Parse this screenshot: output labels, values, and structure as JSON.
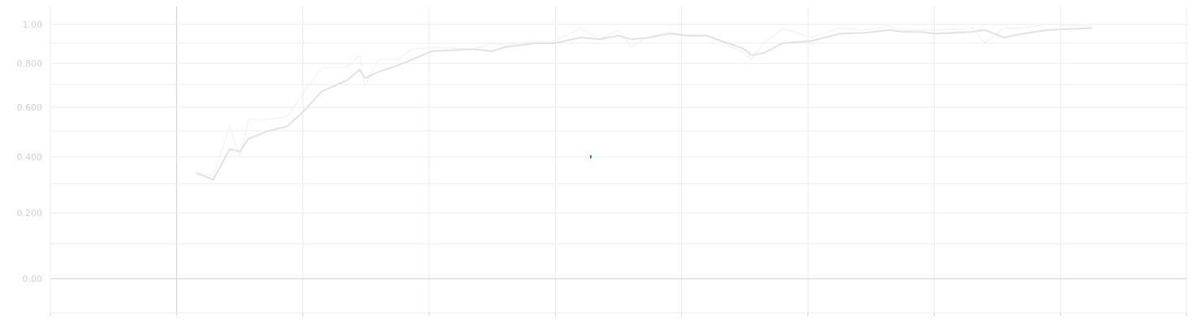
{
  "colors": {
    "background": "#ffffff",
    "grid": "#ececec",
    "axis": "#d6d6d6",
    "tick_text": "#cfcfcf",
    "smoothed_line": "#e2e2e2",
    "raw_line": "#f2f2f2",
    "marker": "#2b7bd6"
  },
  "chart_data": {
    "type": "line",
    "title": "",
    "xlabel": "",
    "ylabel": "",
    "xlim": [
      -1,
      8
    ],
    "ylim": [
      -0.15,
      1.08
    ],
    "y_scale": "symlog-like",
    "grid": true,
    "y_ticks": [
      {
        "value": 0.0,
        "label": "0.00"
      },
      {
        "value": 0.2,
        "label": "0.200"
      },
      {
        "value": 0.4,
        "label": "0.400"
      },
      {
        "value": 0.6,
        "label": "0.600"
      },
      {
        "value": 0.8,
        "label": "0.800"
      },
      {
        "value": 1.0,
        "label": "1.00"
      }
    ],
    "y_minor_ticks": [
      0.3,
      0.5,
      0.7,
      0.9
    ],
    "y_gridlines_extra": [
      0.1
    ],
    "x_gridlines": [
      -1,
      0,
      1,
      2,
      3,
      4,
      5,
      6,
      7,
      8
    ],
    "series": [
      {
        "role": "smoothed",
        "x": [
          0.15,
          0.29,
          0.42,
          0.5,
          0.57,
          0.73,
          0.88,
          1.0,
          1.15,
          1.35,
          1.45,
          1.49,
          1.6,
          1.75,
          1.87,
          2.02,
          2.35,
          2.5,
          2.6,
          2.85,
          3.0,
          3.2,
          3.35,
          3.5,
          3.6,
          3.75,
          3.9,
          4.05,
          4.2,
          4.5,
          4.55,
          4.65,
          4.8,
          5.02,
          5.25,
          5.45,
          5.65,
          5.75,
          5.9,
          6.0,
          6.3,
          6.4,
          6.55,
          6.7,
          6.9,
          7.25
        ],
        "y": [
          0.34,
          0.315,
          0.43,
          0.42,
          0.47,
          0.5,
          0.52,
          0.58,
          0.67,
          0.72,
          0.77,
          0.73,
          0.76,
          0.79,
          0.82,
          0.86,
          0.87,
          0.86,
          0.88,
          0.9,
          0.9,
          0.93,
          0.92,
          0.94,
          0.92,
          0.93,
          0.95,
          0.94,
          0.94,
          0.87,
          0.84,
          0.85,
          0.9,
          0.91,
          0.95,
          0.955,
          0.97,
          0.96,
          0.96,
          0.95,
          0.96,
          0.97,
          0.93,
          0.95,
          0.97,
          0.98
        ]
      },
      {
        "role": "raw",
        "x": [
          0.15,
          0.29,
          0.42,
          0.5,
          0.57,
          0.73,
          0.88,
          1.0,
          1.15,
          1.35,
          1.45,
          1.49,
          1.6,
          1.75,
          1.87,
          2.02,
          2.35,
          2.5,
          2.6,
          2.85,
          3.0,
          3.2,
          3.35,
          3.5,
          3.6,
          3.75,
          3.9,
          4.05,
          4.2,
          4.5,
          4.55,
          4.65,
          4.8,
          5.02,
          5.25,
          5.45,
          5.65,
          5.75,
          5.9,
          6.0,
          6.3,
          6.4,
          6.55,
          6.7,
          6.9,
          7.25
        ],
        "y": [
          0.34,
          0.33,
          0.52,
          0.4,
          0.55,
          0.55,
          0.56,
          0.66,
          0.78,
          0.78,
          0.84,
          0.69,
          0.82,
          0.82,
          0.87,
          0.88,
          0.87,
          0.9,
          0.89,
          0.91,
          0.91,
          0.98,
          0.92,
          0.97,
          0.88,
          0.94,
          0.96,
          0.94,
          0.94,
          0.85,
          0.82,
          0.9,
          0.98,
          0.93,
          0.98,
          0.97,
          0.99,
          0.97,
          0.97,
          0.97,
          0.98,
          0.9,
          0.98,
          0.98,
          1.0,
          0.99
        ]
      }
    ],
    "marker_point": {
      "x": 3.28,
      "y": 0.4
    }
  }
}
